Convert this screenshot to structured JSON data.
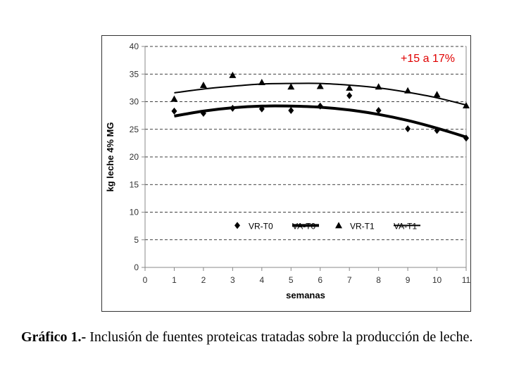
{
  "caption": {
    "label": "Gráfico 1.-",
    "text": " Inclusión de fuentes proteicas tratadas sobre la producción de leche."
  },
  "chart_data": {
    "type": "scatter",
    "xlabel": "semanas",
    "ylabel": "kg leche 4% MG",
    "xlim": [
      0,
      11
    ],
    "ylim": [
      0,
      40
    ],
    "x_ticks": [
      0,
      1,
      2,
      3,
      4,
      5,
      6,
      7,
      8,
      9,
      10,
      11
    ],
    "y_ticks": [
      0,
      5,
      10,
      15,
      20,
      25,
      30,
      35,
      40
    ],
    "grid": "horizontal dashed",
    "legend_position": "bottom-right inside plot",
    "annotation": "+15 a 17%",
    "annotation_color": "#e00000",
    "series": [
      {
        "name": "VR-T0",
        "kind": "points",
        "marker": "diamond",
        "x": [
          1,
          2,
          3,
          4,
          5,
          6,
          7,
          8,
          9,
          10,
          11
        ],
        "values": [
          28.3,
          27.9,
          28.8,
          28.7,
          28.4,
          29.2,
          31.1,
          28.4,
          25.1,
          24.8,
          23.4
        ]
      },
      {
        "name": "VA-T0",
        "kind": "line",
        "stroke": "thick",
        "x": [
          1,
          2,
          3,
          4,
          5,
          6,
          7,
          8,
          9,
          10,
          11
        ],
        "values": [
          27.4,
          28.3,
          28.9,
          29.2,
          29.2,
          29.0,
          28.5,
          27.7,
          26.6,
          25.2,
          23.6
        ]
      },
      {
        "name": "VR-T1",
        "kind": "points",
        "marker": "triangle",
        "x": [
          1,
          2,
          3,
          4,
          5,
          6,
          7,
          8,
          9,
          10,
          11
        ],
        "values": [
          30.5,
          33.0,
          34.8,
          33.5,
          32.7,
          32.8,
          32.5,
          32.7,
          32.0,
          31.3,
          29.3
        ]
      },
      {
        "name": "VA-T1",
        "kind": "line",
        "stroke": "thin",
        "x": [
          1,
          2,
          3,
          4,
          5,
          6,
          7,
          8,
          9,
          10,
          11
        ],
        "values": [
          31.6,
          32.3,
          32.8,
          33.2,
          33.3,
          33.3,
          33.0,
          32.5,
          31.7,
          30.7,
          29.4
        ]
      }
    ]
  }
}
